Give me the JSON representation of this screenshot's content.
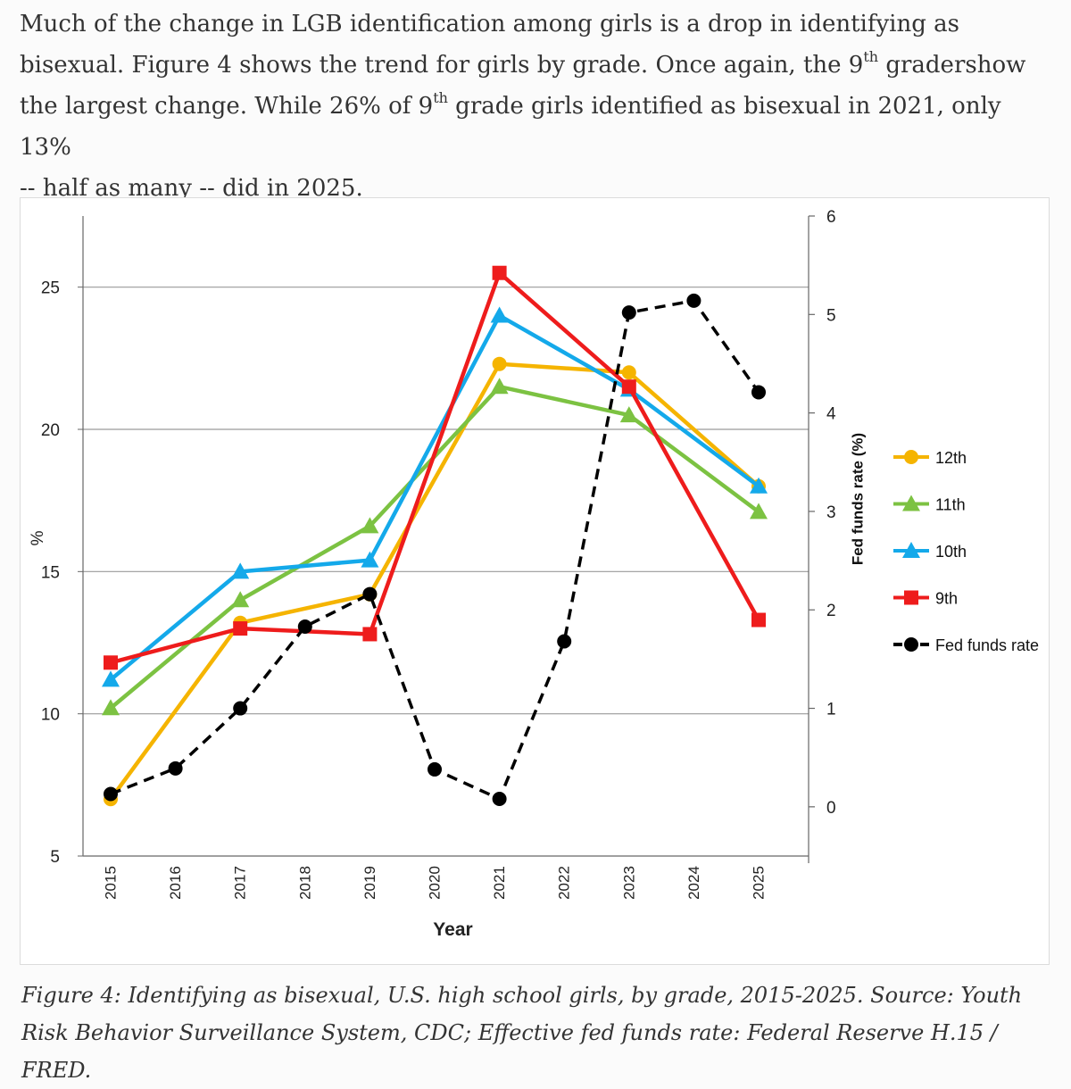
{
  "intro": {
    "line1": "Much of the change in LGB identification among girls is a drop in identifying as",
    "line2_a": "bisexual. Figure 4 shows the trend for girls by grade. Once again, the 9",
    "line2_sup": "th",
    "line2_b": " gradershow",
    "line3_a": "the largest change. While 26% of 9",
    "line3_sup": "th",
    "line3_b": " grade girls identified as bisexual in 2021, only 13%",
    "line4": "-- half as many -- did in 2025."
  },
  "caption": {
    "line1": "Figure 4: Identifying as bisexual, U.S. high school girls, by grade, 2015-2025. Source: Youth",
    "line2": "Risk Behavior Surveillance System, CDC; Effective fed funds rate: Federal Reserve H.15 / FRED."
  },
  "chart_data": {
    "type": "line",
    "xlabel": "Year",
    "ylabel": "%",
    "y2label": "Fed funds rate (%)",
    "ylim": [
      5,
      27.5
    ],
    "y2lim": [
      -0.5,
      6.0
    ],
    "yticks": [
      5,
      10,
      15,
      20,
      25
    ],
    "y2ticks": [
      0,
      1,
      2,
      3,
      4,
      5,
      6
    ],
    "grid": true,
    "legend_position": "right",
    "x": [
      "2015",
      "2016",
      "2017",
      "2018",
      "2019",
      "2020",
      "2021",
      "2022",
      "2023",
      "2024",
      "2025"
    ],
    "series": [
      {
        "name": "12th",
        "axis": "left",
        "color": "#f5b400",
        "marker": "circle",
        "dashed": false,
        "points": [
          [
            "2015",
            7.0
          ],
          [
            "2017",
            13.2
          ],
          [
            "2019",
            14.2
          ],
          [
            "2021",
            22.3
          ],
          [
            "2023",
            22.0
          ],
          [
            "2025",
            18.0
          ]
        ]
      },
      {
        "name": "11th",
        "axis": "left",
        "color": "#7cc242",
        "marker": "triangle",
        "dashed": false,
        "points": [
          [
            "2015",
            10.2
          ],
          [
            "2017",
            14.0
          ],
          [
            "2019",
            16.6
          ],
          [
            "2021",
            21.5
          ],
          [
            "2023",
            20.5
          ],
          [
            "2025",
            17.1
          ]
        ]
      },
      {
        "name": "10th",
        "axis": "left",
        "color": "#14a9ea",
        "marker": "triangle",
        "dashed": false,
        "points": [
          [
            "2015",
            11.2
          ],
          [
            "2017",
            15.0
          ],
          [
            "2019",
            15.4
          ],
          [
            "2021",
            24.0
          ],
          [
            "2023",
            21.4
          ],
          [
            "2025",
            18.0
          ]
        ]
      },
      {
        "name": "9th",
        "axis": "left",
        "color": "#ee1c1c",
        "marker": "square",
        "dashed": false,
        "points": [
          [
            "2015",
            11.8
          ],
          [
            "2017",
            13.0
          ],
          [
            "2019",
            12.8
          ],
          [
            "2021",
            25.5
          ],
          [
            "2023",
            21.5
          ],
          [
            "2025",
            13.3
          ]
        ]
      },
      {
        "name": "Fed funds rate",
        "axis": "right",
        "color": "#000000",
        "marker": "circle",
        "dashed": true,
        "points": [
          [
            "2015",
            0.13
          ],
          [
            "2016",
            0.39
          ],
          [
            "2017",
            1.0
          ],
          [
            "2018",
            1.83
          ],
          [
            "2019",
            2.16
          ],
          [
            "2020",
            0.38
          ],
          [
            "2021",
            0.08
          ],
          [
            "2022",
            1.68
          ],
          [
            "2023",
            5.02
          ],
          [
            "2024",
            5.14
          ],
          [
            "2025",
            4.21
          ]
        ]
      }
    ]
  }
}
